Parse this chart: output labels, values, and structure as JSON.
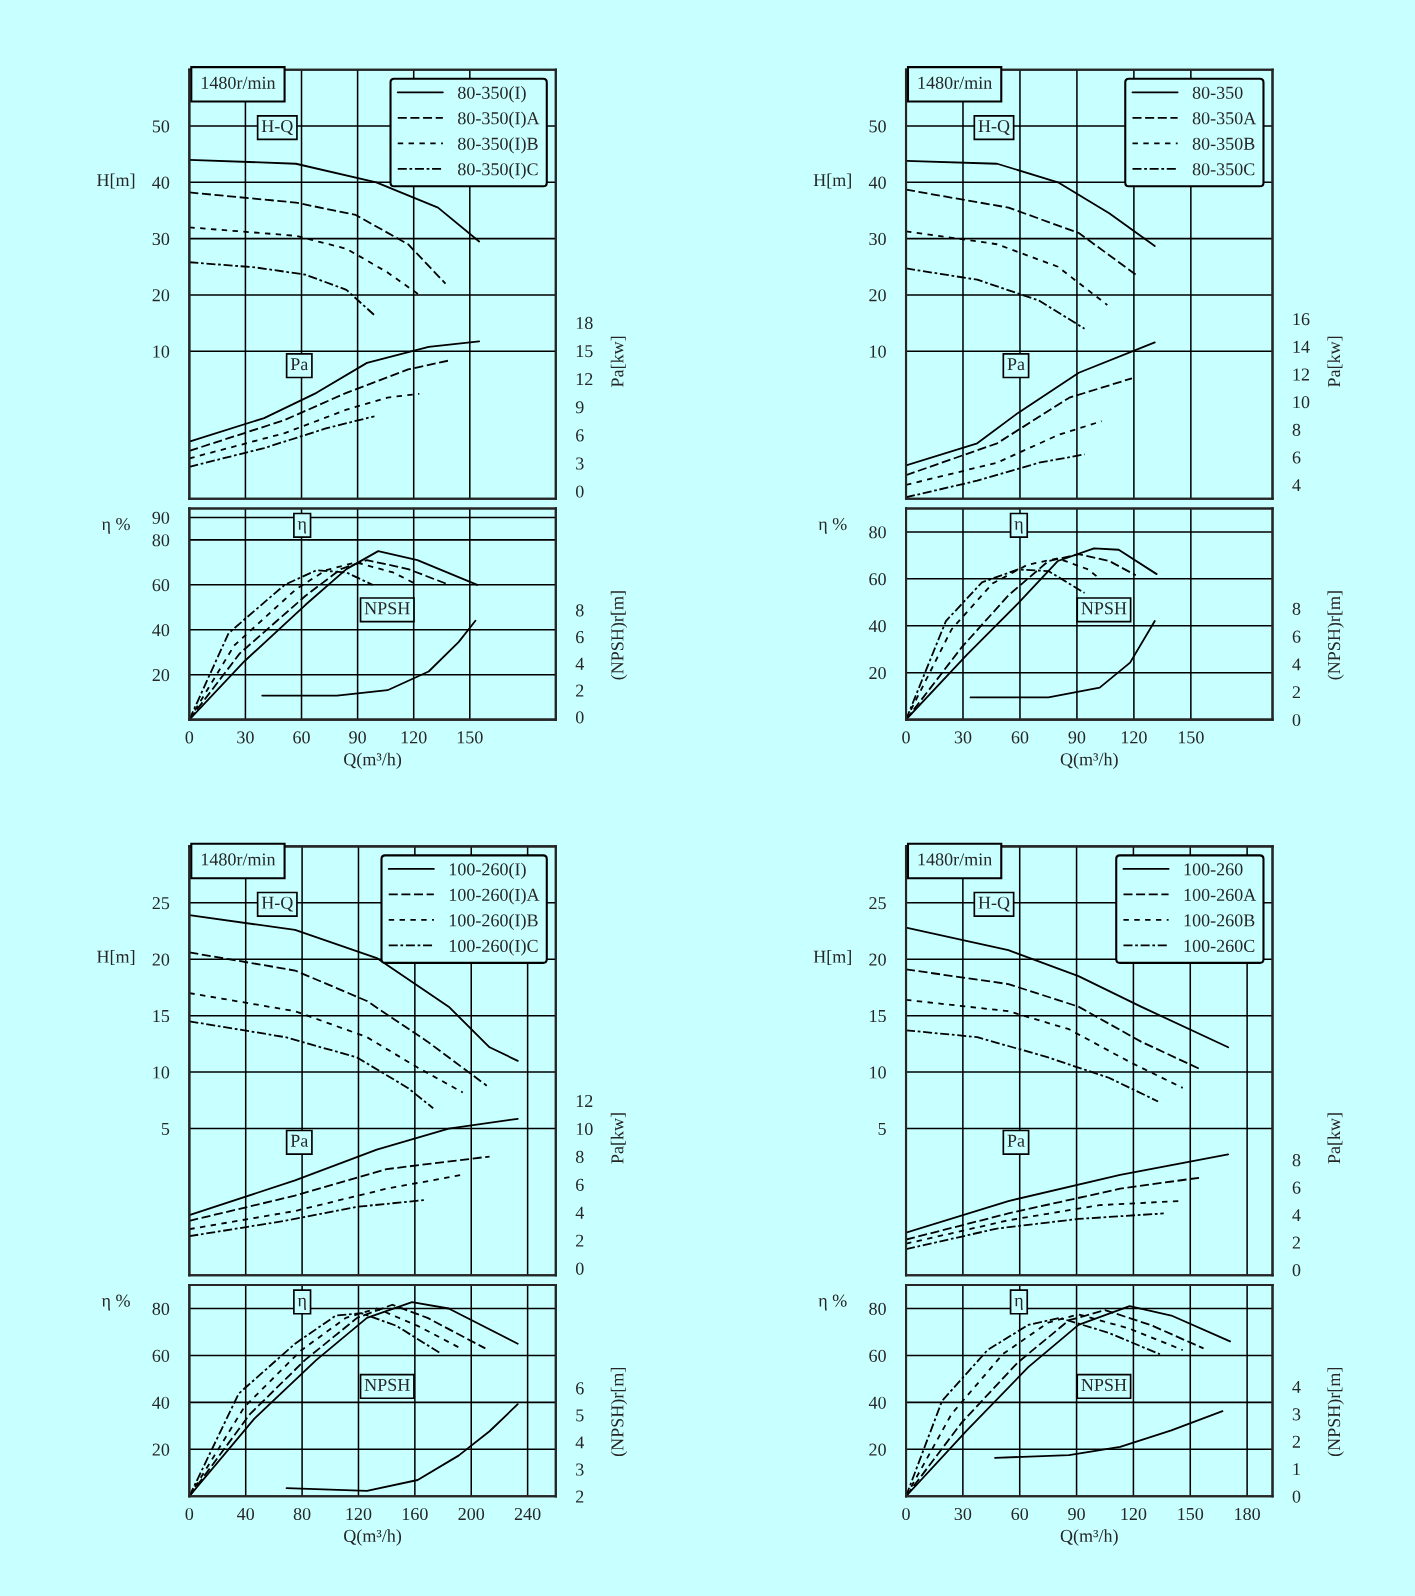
{
  "chart_data": [
    {
      "type": "line",
      "ylabel": "H[m]",
      "y2label": "Pa[kw]",
      "tick_labels": "y",
      "annotations": [
        "1480r/min",
        "H-Q",
        "Pa"
      ],
      "xlim": [
        0,
        196
      ],
      "xticks": [
        0,
        30,
        60,
        90,
        120,
        150
      ],
      "ylim": [
        -16.2,
        60
      ],
      "yticks": [
        10,
        20,
        30,
        40,
        50
      ],
      "y2lim": [
        -0.8,
        45
      ],
      "y2ticks": [
        0,
        3,
        6,
        9,
        12,
        15,
        18
      ],
      "grid": true,
      "legend": "top right",
      "series": [
        {
          "name": "80-350(I)",
          "color": "#000000",
          "line_style": "solid",
          "x": [
            0,
            57,
            100,
            133,
            155
          ],
          "values": [
            44,
            43.3,
            40,
            35.5,
            29.5
          ]
        },
        {
          "name": "80-350(I)A",
          "color": "#000000",
          "line_style": "dashed",
          "x": [
            0,
            57,
            89,
            117,
            137
          ],
          "values": [
            38.2,
            36.4,
            34.2,
            29,
            22
          ]
        },
        {
          "name": "80-350(I)B",
          "color": "#000000",
          "line_style": "dotted",
          "x": [
            0,
            57,
            84,
            106,
            123
          ],
          "values": [
            32,
            30.5,
            28.2,
            24,
            20
          ]
        },
        {
          "name": "80-350(I)C",
          "color": "#000000",
          "line_style": "dashdot",
          "x": [
            0,
            35,
            62,
            84,
            99
          ],
          "values": [
            25.8,
            24.9,
            23.6,
            20.9,
            16.4
          ]
        },
        {
          "axis": "y2",
          "color": "#000000",
          "line_style": "solid",
          "x": [
            0,
            40,
            68,
            95,
            128,
            155
          ],
          "values": [
            5.3,
            7.8,
            10.5,
            13.7,
            15.4,
            16
          ]
        },
        {
          "axis": "y2",
          "color": "#000000",
          "line_style": "dashed",
          "x": [
            0,
            51,
            84,
            117,
            140
          ],
          "values": [
            4.3,
            7.6,
            10.5,
            13,
            14
          ]
        },
        {
          "axis": "y2",
          "color": "#000000",
          "line_style": "dotted",
          "x": [
            0,
            51,
            84,
            106,
            123
          ],
          "values": [
            3.5,
            6.2,
            8.7,
            10,
            10.4
          ]
        },
        {
          "axis": "y2",
          "color": "#000000",
          "line_style": "dashdot",
          "x": [
            0,
            40,
            73,
            99
          ],
          "values": [
            2.6,
            4.6,
            6.7,
            8
          ]
        }
      ]
    },
    {
      "type": "line",
      "xlabel": "Q(m³/h)",
      "ylabel": "η %",
      "y2label": "(NPSH)r[m]",
      "annotations": [
        "η",
        "NPSH"
      ],
      "xlim": [
        0,
        196
      ],
      "xticks": [
        0,
        30,
        60,
        90,
        120,
        150
      ],
      "ylim": [
        0,
        94
      ],
      "yticks": [
        20,
        40,
        60,
        80,
        90
      ],
      "y2lim": [
        -0.2,
        15.6
      ],
      "y2ticks": [
        0,
        2,
        4,
        6,
        8
      ],
      "grid": true,
      "series": [
        {
          "color": "#000000",
          "line_style": "solid",
          "x": [
            0,
            29.5,
            62,
            84,
            101,
            122,
            154
          ],
          "values": [
            0,
            26,
            51,
            67,
            75,
            71,
            60
          ]
        },
        {
          "color": "#000000",
          "line_style": "dashed",
          "x": [
            0,
            27,
            62,
            81,
            95,
            117,
            139
          ],
          "values": [
            0,
            29.5,
            55,
            67,
            71,
            67,
            60
          ]
        },
        {
          "color": "#000000",
          "line_style": "dotted",
          "x": [
            0,
            24,
            57,
            73,
            89,
            109,
            122
          ],
          "values": [
            0,
            33,
            58,
            66.5,
            70,
            65.5,
            60
          ]
        },
        {
          "color": "#000000",
          "line_style": "dashdot",
          "x": [
            0,
            21,
            51,
            68,
            84,
            98
          ],
          "values": [
            0,
            38.5,
            60,
            66.5,
            65.5,
            60
          ]
        },
        {
          "axis": "y2",
          "color": "#000000",
          "line_style": "solid",
          "x": [
            39,
            79,
            106,
            128,
            144,
            153
          ],
          "values": [
            1.6,
            1.6,
            2,
            3.4,
            5.6,
            7.2
          ]
        }
      ]
    },
    {
      "type": "line",
      "ylabel": "H[m]",
      "y2label": "Pa[kw]",
      "tick_labels": "y",
      "annotations": [
        "1480r/min",
        "H-Q",
        "Pa"
      ],
      "xlim": [
        0,
        193
      ],
      "xticks": [
        0,
        30,
        60,
        90,
        120,
        150
      ],
      "ylim": [
        -16.2,
        60
      ],
      "yticks": [
        10,
        20,
        30,
        40,
        50
      ],
      "y2lim": [
        3,
        34
      ],
      "y2ticks": [
        4,
        6,
        8,
        10,
        12,
        14,
        16
      ],
      "grid": true,
      "legend": "top right",
      "series": [
        {
          "name": "80-350",
          "color": "#000000",
          "line_style": "solid",
          "x": [
            0,
            48,
            80,
            107,
            131
          ],
          "values": [
            43.8,
            43.3,
            40,
            34.5,
            28.7
          ]
        },
        {
          "name": "80-350A",
          "color": "#000000",
          "line_style": "dashed",
          "x": [
            0,
            54,
            91,
            121
          ],
          "values": [
            38.7,
            35.5,
            31,
            23.6
          ]
        },
        {
          "name": "80-350B",
          "color": "#000000",
          "line_style": "dotted",
          "x": [
            0,
            48,
            80,
            106
          ],
          "values": [
            31.3,
            29,
            25,
            18.2
          ]
        },
        {
          "name": "80-350C",
          "color": "#000000",
          "line_style": "dashdot",
          "x": [
            0,
            37.5,
            70,
            94
          ],
          "values": [
            24.7,
            22.7,
            19,
            14
          ]
        },
        {
          "axis": "y2",
          "color": "#000000",
          "line_style": "solid",
          "x": [
            0,
            37.5,
            59,
            91,
            131
          ],
          "values": [
            5.4,
            7,
            9.2,
            12.1,
            14.3
          ]
        },
        {
          "axis": "y2",
          "color": "#000000",
          "line_style": "dashed",
          "x": [
            0,
            48,
            86,
            119
          ],
          "values": [
            4.7,
            7,
            10.3,
            11.7
          ]
        },
        {
          "axis": "y2",
          "color": "#000000",
          "line_style": "dotted",
          "x": [
            0,
            48,
            80,
            103
          ],
          "values": [
            4,
            5.6,
            7.6,
            8.6
          ]
        },
        {
          "axis": "y2",
          "color": "#000000",
          "line_style": "dashdot",
          "x": [
            0,
            37.5,
            70,
            94
          ],
          "values": [
            3.1,
            4.3,
            5.6,
            6.2
          ]
        }
      ]
    },
    {
      "type": "line",
      "xlabel": "Q(m³/h)",
      "ylabel": "η %",
      "y2label": "(NPSH)r[m]",
      "annotations": [
        "η",
        "NPSH"
      ],
      "xlim": [
        0,
        193
      ],
      "xticks": [
        0,
        30,
        60,
        90,
        120,
        150
      ],
      "ylim": [
        0,
        90
      ],
      "yticks": [
        20,
        40,
        60,
        80
      ],
      "y2lim": [
        0,
        15.2
      ],
      "y2ticks": [
        0,
        2,
        4,
        6,
        8
      ],
      "grid": true,
      "series": [
        {
          "color": "#000000",
          "line_style": "solid",
          "x": [
            0,
            32,
            59,
            80,
            99,
            112,
            132
          ],
          "values": [
            0,
            27.6,
            49.5,
            67.6,
            73,
            72.4,
            62
          ]
        },
        {
          "color": "#000000",
          "line_style": "dashed",
          "x": [
            0,
            29.5,
            54,
            75,
            91,
            107,
            121
          ],
          "values": [
            0,
            31,
            53,
            67.6,
            70.5,
            67.6,
            61.5
          ]
        },
        {
          "color": "#000000",
          "line_style": "dotted",
          "x": [
            0,
            24,
            45.5,
            64,
            80,
            96,
            102
          ],
          "values": [
            0,
            38.5,
            58,
            66,
            68.7,
            64,
            60
          ]
        },
        {
          "color": "#000000",
          "line_style": "dashdot",
          "x": [
            0,
            21,
            40,
            59,
            75,
            94
          ],
          "values": [
            0,
            42,
            58.5,
            64,
            63.3,
            54
          ]
        },
        {
          "axis": "y2",
          "color": "#000000",
          "line_style": "solid",
          "x": [
            34,
            75,
            102,
            118,
            131
          ],
          "values": [
            1.6,
            1.6,
            2.3,
            4.1,
            7.1
          ]
        }
      ]
    },
    {
      "type": "line",
      "ylabel": "H[m]",
      "y2label": "Pa[kw]",
      "tick_labels": "y",
      "annotations": [
        "1480r/min",
        "H-Q",
        "Pa"
      ],
      "xlim": [
        0,
        260
      ],
      "xticks": [
        0,
        40,
        80,
        120,
        160,
        200,
        240
      ],
      "ylim": [
        -8,
        30
      ],
      "yticks": [
        5,
        10,
        15,
        20,
        25
      ],
      "y2lim": [
        -0.5,
        30.2
      ],
      "y2ticks": [
        0,
        2,
        4,
        6,
        8,
        10,
        12
      ],
      "grid": true,
      "legend": "top right",
      "series": [
        {
          "name": "100-260(I)",
          "color": "#000000",
          "line_style": "solid",
          "x": [
            0,
            75,
            133,
            184,
            213,
            233
          ],
          "values": [
            23.9,
            22.6,
            20.1,
            15.8,
            12.2,
            11
          ]
        },
        {
          "name": "100-260(I)A",
          "color": "#000000",
          "line_style": "dashed",
          "x": [
            0,
            75,
            126,
            169,
            211
          ],
          "values": [
            20.6,
            19,
            16.3,
            12.7,
            8.8
          ]
        },
        {
          "name": "100-260(I)B",
          "color": "#000000",
          "line_style": "dotted",
          "x": [
            0,
            75,
            126,
            162,
            194
          ],
          "values": [
            17,
            15.4,
            13.1,
            10.4,
            8.2
          ]
        },
        {
          "name": "100-260(I)C",
          "color": "#000000",
          "line_style": "dashdot",
          "x": [
            0,
            68,
            119,
            155,
            173
          ],
          "values": [
            14.5,
            13.1,
            11.3,
            8.6,
            6.8
          ]
        },
        {
          "axis": "y2",
          "color": "#000000",
          "line_style": "solid",
          "x": [
            0,
            75,
            133,
            184,
            233
          ],
          "values": [
            3.8,
            6.3,
            8.5,
            10,
            10.7
          ]
        },
        {
          "axis": "y2",
          "color": "#000000",
          "line_style": "dashed",
          "x": [
            0,
            75,
            140,
            213
          ],
          "values": [
            3.4,
            5.2,
            7.1,
            8
          ]
        },
        {
          "axis": "y2",
          "color": "#000000",
          "line_style": "dotted",
          "x": [
            0,
            75,
            140,
            194
          ],
          "values": [
            2.8,
            4.1,
            5.7,
            6.7
          ]
        },
        {
          "axis": "y2",
          "color": "#000000",
          "line_style": "dashdot",
          "x": [
            0,
            68,
            119,
            168
          ],
          "values": [
            2.3,
            3.4,
            4.4,
            4.9
          ]
        }
      ]
    },
    {
      "type": "line",
      "xlabel": "Q(m³/h)",
      "ylabel": "η %",
      "y2label": "(NPSH)r[m]",
      "annotations": [
        "η",
        "NPSH"
      ],
      "xlim": [
        0,
        260
      ],
      "xticks": [
        0,
        40,
        80,
        120,
        160,
        200,
        240
      ],
      "ylim": [
        0,
        90
      ],
      "yticks": [
        20,
        40,
        60,
        80
      ],
      "y2lim": [
        2,
        9.8
      ],
      "y2ticks": [
        2,
        3,
        4,
        5,
        6
      ],
      "grid": true,
      "series": [
        {
          "color": "#000000",
          "line_style": "solid",
          "x": [
            0,
            46,
            90,
            126,
            158,
            184,
            233
          ],
          "values": [
            0,
            33,
            58,
            76,
            82.7,
            80,
            65
          ]
        },
        {
          "color": "#000000",
          "line_style": "dashed",
          "x": [
            0,
            43,
            82,
            119,
            144,
            169,
            210
          ],
          "values": [
            0,
            35,
            58,
            76,
            81.6,
            76,
            63
          ]
        },
        {
          "color": "#000000",
          "line_style": "dotted",
          "x": [
            0,
            39,
            79,
            111,
            133,
            162,
            191
          ],
          "values": [
            0,
            38,
            62,
            76,
            80,
            72.6,
            63.5
          ]
        },
        {
          "color": "#000000",
          "line_style": "dashdot",
          "x": [
            0,
            35,
            75,
            104,
            122,
            147,
            178
          ],
          "values": [
            0,
            43.7,
            65,
            77,
            78,
            72.6,
            61
          ]
        },
        {
          "axis": "y2",
          "color": "#000000",
          "line_style": "solid",
          "x": [
            69,
            126,
            162,
            191,
            213,
            233
          ],
          "values": [
            2.3,
            2.2,
            2.6,
            3.5,
            4.4,
            5.4
          ]
        }
      ]
    },
    {
      "type": "line",
      "ylabel": "H[m]",
      "y2label": "Pa[kw]",
      "tick_labels": "y",
      "annotations": [
        "1480r/min",
        "H-Q",
        "Pa"
      ],
      "xlim": [
        0,
        193.4
      ],
      "xticks": [
        0,
        30,
        60,
        90,
        120,
        150,
        180
      ],
      "ylim": [
        -8,
        30
      ],
      "yticks": [
        5,
        10,
        15,
        20,
        25
      ],
      "y2lim": [
        -0.4,
        30.8
      ],
      "y2ticks": [
        0,
        2,
        4,
        6,
        8
      ],
      "grid": true,
      "legend": "top right",
      "series": [
        {
          "name": "100-260",
          "color": "#000000",
          "line_style": "solid",
          "x": [
            0,
            54,
            91,
            124,
            170
          ],
          "values": [
            22.8,
            20.8,
            18.5,
            15.8,
            12.2
          ]
        },
        {
          "name": "100-260A",
          "color": "#000000",
          "line_style": "dashed",
          "x": [
            0,
            54,
            91,
            124,
            156
          ],
          "values": [
            19.1,
            17.8,
            15.8,
            12.7,
            10.2
          ]
        },
        {
          "name": "100-260B",
          "color": "#000000",
          "line_style": "dotted",
          "x": [
            0,
            54,
            86,
            118,
            146
          ],
          "values": [
            16.4,
            15.4,
            13.8,
            10.9,
            8.6
          ]
        },
        {
          "name": "100-260C",
          "color": "#000000",
          "line_style": "dashdot",
          "x": [
            0,
            37.6,
            75,
            107,
            133
          ],
          "values": [
            13.7,
            13.1,
            11.3,
            9.5,
            7.4
          ]
        },
        {
          "axis": "y2",
          "color": "#000000",
          "line_style": "solid",
          "x": [
            0,
            54,
            113,
            170
          ],
          "values": [
            2.7,
            5,
            6.9,
            8.4
          ]
        },
        {
          "axis": "y2",
          "color": "#000000",
          "line_style": "dashed",
          "x": [
            0,
            54,
            113,
            155
          ],
          "values": [
            2.2,
            4.1,
            5.9,
            6.7
          ]
        },
        {
          "axis": "y2",
          "color": "#000000",
          "line_style": "dotted",
          "x": [
            0,
            54,
            102,
            144
          ],
          "values": [
            1.9,
            3.6,
            4.7,
            5
          ]
        },
        {
          "axis": "y2",
          "color": "#000000",
          "line_style": "dashdot",
          "x": [
            0,
            48,
            91,
            136
          ],
          "values": [
            1.5,
            3,
            3.7,
            4.1
          ]
        }
      ]
    },
    {
      "type": "line",
      "xlabel": "Q(m³/h)",
      "ylabel": "η %",
      "y2label": "(NPSH)r[m]",
      "annotations": [
        "η",
        "NPSH"
      ],
      "xlim": [
        0,
        193.4
      ],
      "xticks": [
        0,
        30,
        60,
        90,
        120,
        150,
        180
      ],
      "ylim": [
        0,
        90
      ],
      "yticks": [
        20,
        40,
        60,
        80
      ],
      "y2lim": [
        0,
        7.7
      ],
      "y2ticks": [
        0,
        1,
        2,
        3,
        4
      ],
      "grid": true,
      "series": [
        {
          "color": "#000000",
          "line_style": "solid",
          "x": [
            0,
            32,
            64.5,
            91,
            118,
            140,
            171
          ],
          "values": [
            0,
            28,
            55,
            73,
            81,
            77,
            66
          ]
        },
        {
          "color": "#000000",
          "line_style": "dashed",
          "x": [
            0,
            29.5,
            59,
            86,
            105,
            129,
            157
          ],
          "values": [
            0,
            31.5,
            57,
            75,
            79.3,
            73,
            63
          ]
        },
        {
          "color": "#000000",
          "line_style": "dotted",
          "x": [
            0,
            24,
            51,
            75,
            91,
            118,
            146
          ],
          "values": [
            0,
            35,
            60.5,
            74,
            77.5,
            71.4,
            62.3
          ]
        },
        {
          "color": "#000000",
          "line_style": "dashdot",
          "x": [
            0,
            19,
            43,
            64.5,
            81,
            107,
            134
          ],
          "values": [
            0,
            40.6,
            62.3,
            73,
            76,
            69.6,
            60.5
          ]
        },
        {
          "axis": "y2",
          "color": "#000000",
          "line_style": "solid",
          "x": [
            47,
            86,
            113,
            140,
            167
          ],
          "values": [
            1.4,
            1.5,
            1.8,
            2.4,
            3.1
          ]
        }
      ]
    }
  ]
}
